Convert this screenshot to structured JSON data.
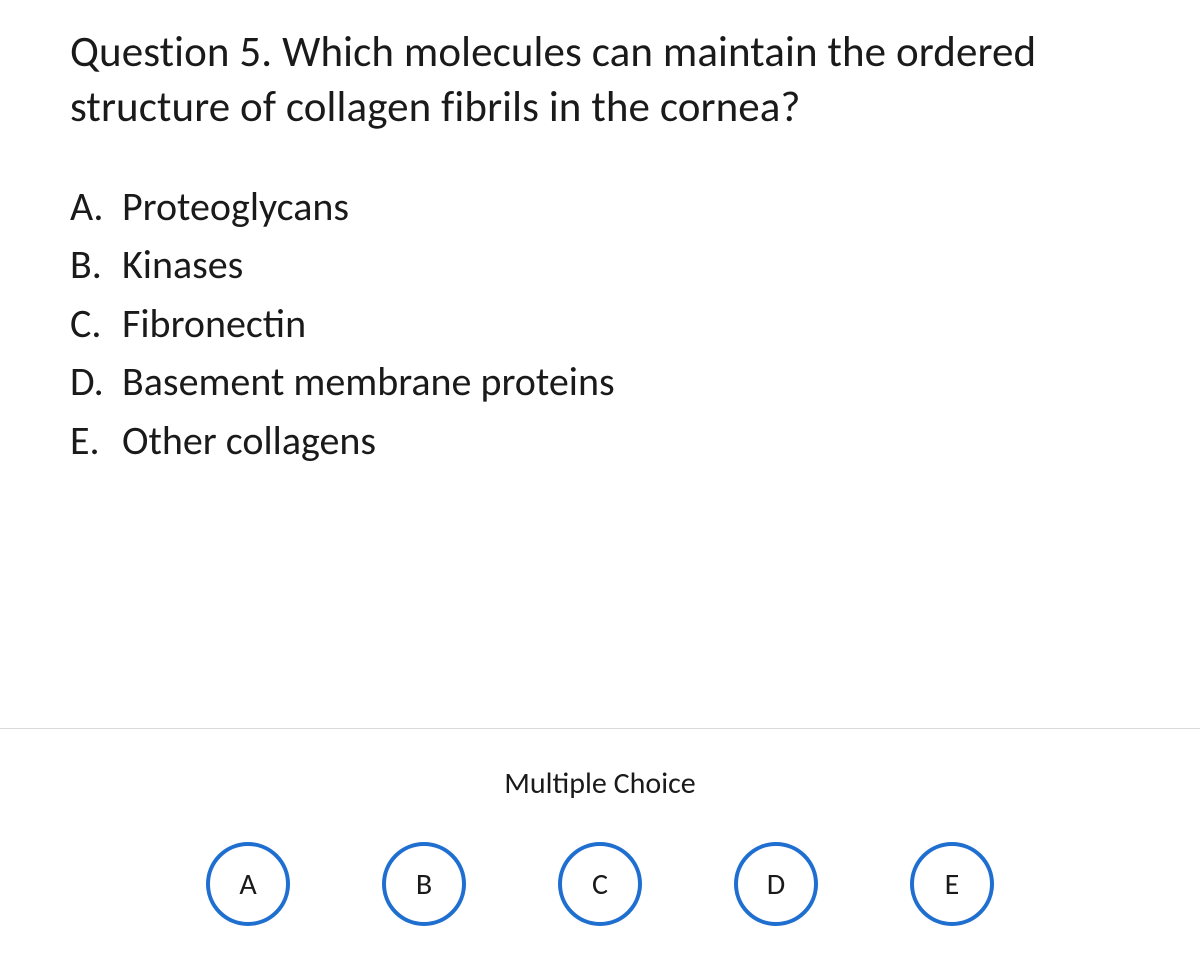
{
  "question": {
    "title": "Question 5. Which molecules can maintain the ordered structure of collagen fibrils in the cornea?",
    "options": [
      {
        "letter": "A.",
        "text": "Proteoglycans"
      },
      {
        "letter": "B.",
        "text": "Kinases"
      },
      {
        "letter": "C.",
        "text": "Fibronectin"
      },
      {
        "letter": "D.",
        "text": "Basement membrane proteins"
      },
      {
        "letter": "E.",
        "text": "Other collagens"
      }
    ]
  },
  "answer_section": {
    "label": "Multiple Choice",
    "choices": [
      "A",
      "B",
      "C",
      "D",
      "E"
    ]
  },
  "style": {
    "background_color": "#ffffff",
    "text_color": "#1a1a1a",
    "title_fontsize": 43,
    "option_fontsize": 40,
    "mc_label_fontsize": 30,
    "choice_fontsize": 30,
    "choice_border_color": "#1f6fd1",
    "choice_border_width": 4,
    "choice_diameter": 84,
    "choice_gap": 92,
    "divider_color": "#d9d9d9"
  }
}
